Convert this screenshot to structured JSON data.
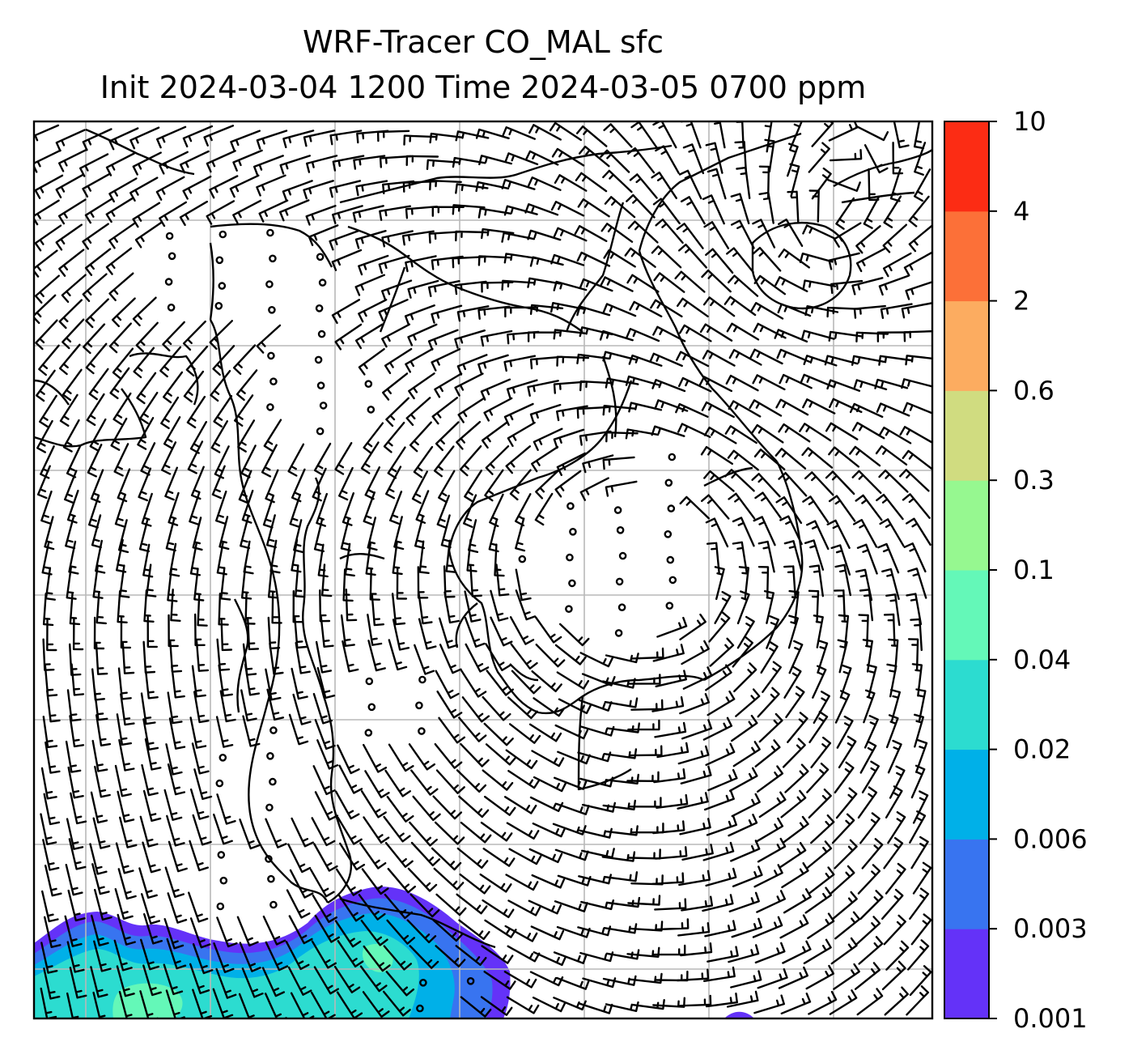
{
  "title": {
    "line1": "WRF-Tracer CO_MAL sfc",
    "line2": "Init 2024-03-04 1200 Time 2024-03-05 0700 ppm"
  },
  "colorbar": {
    "levels": [
      "0.001",
      "0.003",
      "0.006",
      "0.02",
      "0.04",
      "0.1",
      "0.3",
      "0.6",
      "2",
      "4",
      "10"
    ],
    "colors": [
      "#6432f8",
      "#3874f0",
      "#00b0e8",
      "#2cdcd0",
      "#64f8b8",
      "#96f890",
      "#d0dc80",
      "#fcac60",
      "#fc7038",
      "#fc2c14"
    ]
  },
  "map": {
    "field": "CO_MAL surface tracer concentration with wind barbs",
    "plume_location": "south-west corner"
  }
}
